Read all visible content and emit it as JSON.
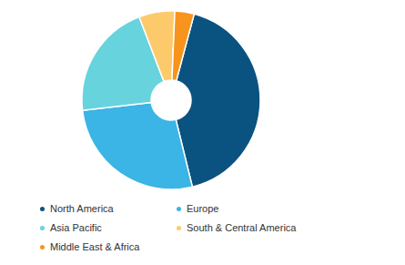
{
  "chart_data": {
    "type": "pie",
    "categories": [
      "North America",
      "Europe",
      "Asia Pacific",
      "South & Central America",
      "Middle East & Africa"
    ],
    "values": [
      42,
      27,
      21,
      6.5,
      3.5
    ],
    "colors": [
      "#0a5280",
      "#3bb4e6",
      "#67d3dd",
      "#fdca6b",
      "#f7941d"
    ],
    "legend": "bottom"
  }
}
